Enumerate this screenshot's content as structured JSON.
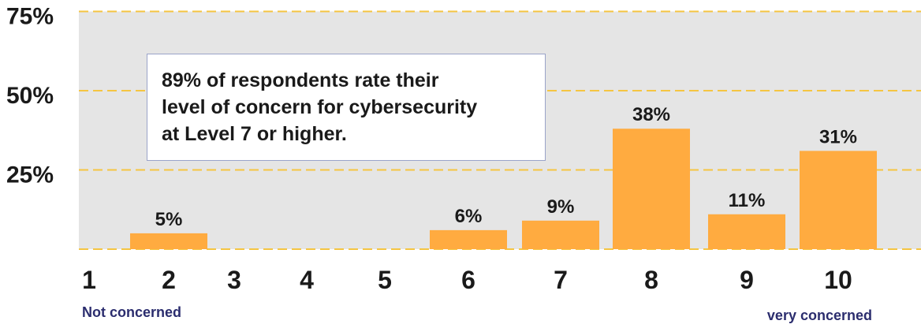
{
  "chart_data": {
    "type": "bar",
    "categories": [
      "1",
      "2",
      "3",
      "4",
      "5",
      "6",
      "7",
      "8",
      "9",
      "10"
    ],
    "values": [
      null,
      5,
      null,
      null,
      null,
      6,
      9,
      38,
      11,
      31
    ],
    "value_labels": [
      "",
      "5%",
      "",
      "",
      "",
      "6%",
      "9%",
      "38%",
      "11%",
      "31%"
    ],
    "y_ticks": [
      "75%",
      "50%",
      "25%"
    ],
    "y_tick_values": [
      75,
      50,
      25
    ],
    "ylim": [
      0,
      75
    ],
    "title": "",
    "xlabel": "",
    "ylabel": "",
    "grid": true,
    "x_end_labels": {
      "left": "Not concerned",
      "right": "very concerned"
    },
    "annotation": [
      "89% of respondents rate their",
      "level of concern for cybersecurity",
      "at Level 7 or higher."
    ],
    "colors": {
      "bar": "#ffab40",
      "plot_background": "#e5e5e5",
      "gridline": "#f5c542",
      "end_label": "#2b2d6e",
      "text": "#1a1a1a"
    }
  }
}
